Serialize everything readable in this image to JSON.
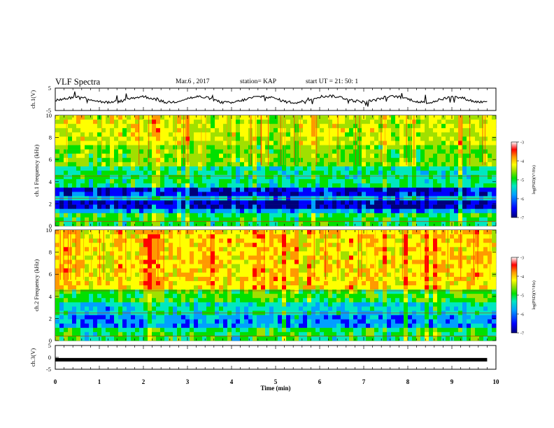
{
  "header": {
    "title": "VLF Spectra",
    "date": "Mar.6 , 2017",
    "station": "station= KAP",
    "start": "start UT = 21: 50: 1"
  },
  "chart_data": [
    {
      "type": "line",
      "ylabel": "ch.1(V)",
      "xlim": [
        0,
        10
      ],
      "ylim": [
        -5,
        5
      ],
      "yticks": [
        "5",
        "-5"
      ],
      "x": [
        0,
        0.25,
        0.5,
        0.75,
        1,
        1.25,
        1.5,
        1.75,
        2,
        2.25,
        2.5,
        2.75,
        3,
        3.25,
        3.5,
        3.75,
        4,
        4.25,
        4.5,
        4.75,
        5,
        5.25,
        5.5,
        5.75,
        6,
        6.25,
        6.5,
        6.75,
        7,
        7.25,
        7.5,
        7.75,
        8,
        8.25,
        8.5,
        8.75,
        9,
        9.25,
        9.5,
        9.75,
        9.8
      ],
      "values": [
        -0.5,
        0.5,
        1.2,
        0.3,
        -1,
        -1.5,
        -0.8,
        0.6,
        1.3,
        0.2,
        -1.4,
        -1,
        0.4,
        1.2,
        0.5,
        -1.3,
        -1.6,
        -0.4,
        0.9,
        1.4,
        0.3,
        -1.2,
        -1.5,
        -0.2,
        1.2,
        1.5,
        0.8,
        -0.6,
        -1.2,
        -0.4,
        1,
        1.3,
        0.2,
        -1.2,
        -1.5,
        0,
        1.1,
        0.6,
        -1,
        -1.3,
        -0.6
      ]
    },
    {
      "type": "heatmap",
      "ylabel": "ch.1 Frequency (kHz)",
      "ylim": [
        0,
        10
      ],
      "yticks": [
        "0",
        "2",
        "4",
        "6",
        "8",
        "10"
      ],
      "xlim": [
        0,
        10
      ],
      "colorbar": {
        "label": "log(PSD)(V²/Hz)",
        "ticks": [
          "-3",
          "-4",
          "-5",
          "-6",
          "-7"
        ],
        "range": [
          -7,
          -3
        ]
      },
      "frequency_bands": [
        {
          "from": 0,
          "to": 1,
          "level": -5.0
        },
        {
          "from": 1,
          "to": 1.6,
          "level": -5.8
        },
        {
          "from": 1.6,
          "to": 2.2,
          "level": -6.6
        },
        {
          "from": 2.2,
          "to": 2.7,
          "level": -5.6
        },
        {
          "from": 2.7,
          "to": 3.6,
          "level": -6.4
        },
        {
          "from": 3.6,
          "to": 5.4,
          "level": -5.2
        },
        {
          "from": 5.4,
          "to": 7.5,
          "level": -4.6
        },
        {
          "from": 7.5,
          "to": 10,
          "level": -4.2
        }
      ]
    },
    {
      "type": "heatmap",
      "ylabel": "ch.2 Frequency (kHz)",
      "ylim": [
        0,
        10
      ],
      "yticks": [
        "0",
        "2",
        "4",
        "6",
        "8",
        "10"
      ],
      "xlim": [
        0,
        10
      ],
      "colorbar": {
        "label": "log(PSD)(V²/Hz)",
        "ticks": [
          "-3",
          "-4",
          "-5",
          "-6",
          "-7"
        ],
        "range": [
          -7,
          -3
        ]
      },
      "frequency_bands": [
        {
          "from": 0,
          "to": 1,
          "level": -5.0
        },
        {
          "from": 1,
          "to": 2.2,
          "level": -5.8
        },
        {
          "from": 2.2,
          "to": 3.4,
          "level": -5.4
        },
        {
          "from": 3.4,
          "to": 4.6,
          "level": -4.8
        },
        {
          "from": 4.6,
          "to": 10,
          "level": -3.8
        }
      ]
    },
    {
      "type": "line",
      "ylabel": "ch.3(V)",
      "xlabel": "Time (min)",
      "xlim": [
        0,
        10
      ],
      "ylim": [
        -5,
        5
      ],
      "yticks": [
        "5",
        "0",
        "-5"
      ],
      "x": [
        0,
        9.8
      ],
      "values": [
        -1,
        -1
      ],
      "xticks": [
        "0",
        "1",
        "2",
        "3",
        "4",
        "5",
        "6",
        "7",
        "8",
        "9",
        "10"
      ]
    }
  ],
  "colors": {
    "line": "#000000",
    "scale": [
      "#00007a",
      "#0000ff",
      "#00a0ff",
      "#00e8c0",
      "#00e000",
      "#a0e000",
      "#ffff00",
      "#ff9a00",
      "#ff0000",
      "#ffffff"
    ]
  }
}
